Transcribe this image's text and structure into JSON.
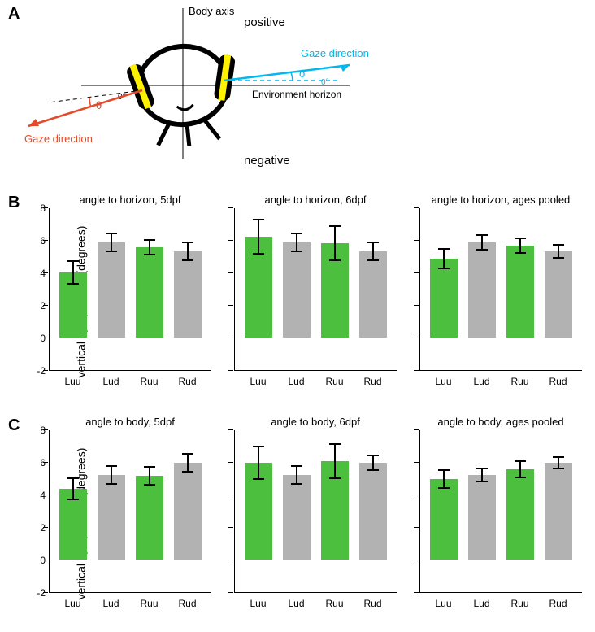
{
  "labels": {
    "A": "A",
    "B": "B",
    "C": "C"
  },
  "panelA": {
    "body_axis": "Body axis",
    "positive": "positive",
    "negative": "negative",
    "gaze_right": "Gaze direction",
    "gaze_left": "Gaze direction",
    "env": "Environment horizon",
    "zero": "0°",
    "phi": "ɸ",
    "theta": "θ",
    "colors": {
      "blue": "#00b7ee",
      "red": "#e44a2a",
      "yellow": "#fff200",
      "black": "#000000"
    }
  },
  "rows": {
    "B": {
      "ylabel": "vertical eye position (degrees)",
      "ylim": [
        -2,
        8
      ],
      "yticks": [
        -2,
        0,
        2,
        4,
        6,
        8
      ],
      "charts": [
        {
          "title": "angle to horizon, 5dpf",
          "bars": [
            {
              "cat": "Luu",
              "val": 4.0,
              "err": 0.7,
              "color": "#4cbf3f"
            },
            {
              "cat": "Lud",
              "val": 5.85,
              "err": 0.55,
              "color": "#b2b2b2"
            },
            {
              "cat": "Ruu",
              "val": 5.55,
              "err": 0.45,
              "color": "#4cbf3f"
            },
            {
              "cat": "Rud",
              "val": 5.3,
              "err": 0.55,
              "color": "#b2b2b2"
            }
          ]
        },
        {
          "title": "angle to horizon, 6dpf",
          "bars": [
            {
              "cat": "Luu",
              "val": 6.2,
              "err": 1.05,
              "color": "#4cbf3f"
            },
            {
              "cat": "Lud",
              "val": 5.85,
              "err": 0.55,
              "color": "#b2b2b2"
            },
            {
              "cat": "Ruu",
              "val": 5.8,
              "err": 1.05,
              "color": "#4cbf3f"
            },
            {
              "cat": "Rud",
              "val": 5.3,
              "err": 0.55,
              "color": "#b2b2b2"
            }
          ]
        },
        {
          "title": "angle to horizon, ages pooled",
          "bars": [
            {
              "cat": "Luu",
              "val": 4.85,
              "err": 0.6,
              "color": "#4cbf3f"
            },
            {
              "cat": "Lud",
              "val": 5.85,
              "err": 0.45,
              "color": "#b2b2b2"
            },
            {
              "cat": "Ruu",
              "val": 5.65,
              "err": 0.45,
              "color": "#4cbf3f"
            },
            {
              "cat": "Rud",
              "val": 5.3,
              "err": 0.4,
              "color": "#b2b2b2"
            }
          ]
        }
      ]
    },
    "C": {
      "ylabel": "vertical eye position (degrees)",
      "ylim": [
        -2,
        8
      ],
      "yticks": [
        -2,
        0,
        2,
        4,
        6,
        8
      ],
      "charts": [
        {
          "title": "angle to body, 5dpf",
          "bars": [
            {
              "cat": "Luu",
              "val": 4.35,
              "err": 0.65,
              "color": "#4cbf3f"
            },
            {
              "cat": "Lud",
              "val": 5.2,
              "err": 0.55,
              "color": "#b2b2b2"
            },
            {
              "cat": "Ruu",
              "val": 5.15,
              "err": 0.55,
              "color": "#4cbf3f"
            },
            {
              "cat": "Rud",
              "val": 5.95,
              "err": 0.55,
              "color": "#b2b2b2"
            }
          ]
        },
        {
          "title": "angle to body, 6dpf",
          "bars": [
            {
              "cat": "Luu",
              "val": 5.95,
              "err": 1.0,
              "color": "#4cbf3f"
            },
            {
              "cat": "Lud",
              "val": 5.2,
              "err": 0.55,
              "color": "#b2b2b2"
            },
            {
              "cat": "Ruu",
              "val": 6.05,
              "err": 1.05,
              "color": "#4cbf3f"
            },
            {
              "cat": "Rud",
              "val": 5.95,
              "err": 0.45,
              "color": "#b2b2b2"
            }
          ]
        },
        {
          "title": "angle to body, ages pooled",
          "bars": [
            {
              "cat": "Luu",
              "val": 4.95,
              "err": 0.55,
              "color": "#4cbf3f"
            },
            {
              "cat": "Lud",
              "val": 5.2,
              "err": 0.4,
              "color": "#b2b2b2"
            },
            {
              "cat": "Ruu",
              "val": 5.55,
              "err": 0.5,
              "color": "#4cbf3f"
            },
            {
              "cat": "Rud",
              "val": 5.95,
              "err": 0.35,
              "color": "#b2b2b2"
            }
          ]
        }
      ]
    }
  }
}
